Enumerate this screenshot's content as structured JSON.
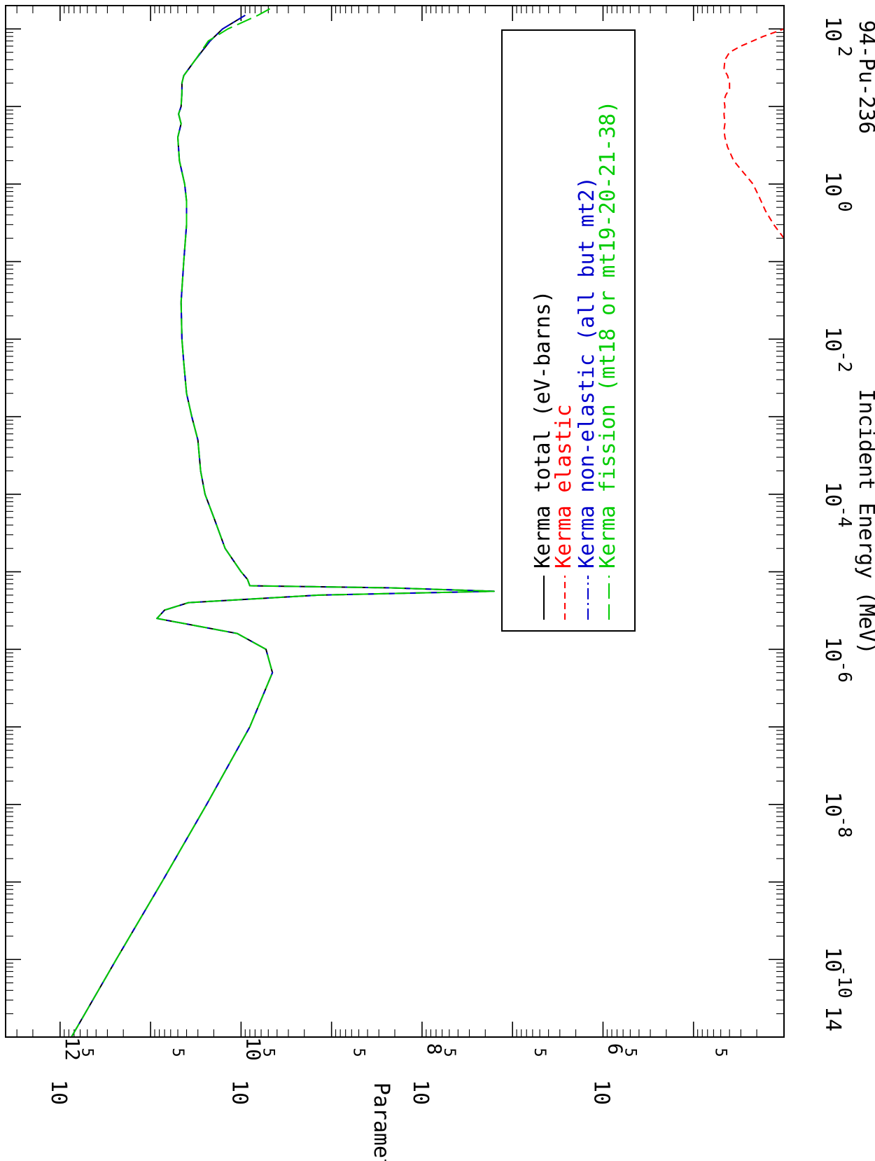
{
  "chart_data": {
    "type": "line",
    "orientation": "rotated-90-clockwise",
    "title": "94-Pu-236",
    "xlabel": "Incident Energy (MeV)",
    "ylabel": "Parameters",
    "x_scale": "log",
    "y_scale": "log",
    "xlim": [
      1e-11,
      200
    ],
    "ylim": [
      10000,
      4000000000000.0
    ],
    "x_ticks": [
      {
        "label": "10",
        "exp": "-10",
        "value": 1e-10
      },
      {
        "label": "10",
        "exp": "-8",
        "value": 1e-08
      },
      {
        "label": "10",
        "exp": "-6",
        "value": 1e-06
      },
      {
        "label": "10",
        "exp": "-4",
        "value": 0.0001
      },
      {
        "label": "10",
        "exp": "-2",
        "value": 0.01
      },
      {
        "label": "10",
        "exp": "0",
        "value": 1
      },
      {
        "label": "10",
        "exp": "2",
        "value": 100
      }
    ],
    "x_extra_label": "14",
    "y_ticks": [
      {
        "label": "10",
        "exp": "6",
        "value": 1000000.0
      },
      {
        "label": "10",
        "exp": "8",
        "value": 100000000.0
      },
      {
        "label": "10",
        "exp": "10",
        "value": 10000000000.0
      },
      {
        "label": "10",
        "exp": "12",
        "value": 1000000000000.0
      }
    ],
    "y_minor_labels": [
      {
        "label": "5",
        "value": 50000.0
      },
      {
        "label": "5",
        "value": 500000.0
      },
      {
        "label": "5",
        "value": 5000000.0
      },
      {
        "label": "5",
        "value": 50000000.0
      },
      {
        "label": "5",
        "value": 500000000.0
      },
      {
        "label": "5",
        "value": 5000000000.0
      },
      {
        "label": "5",
        "value": 50000000000.0
      },
      {
        "label": "5",
        "value": 500000000000.0
      }
    ],
    "legend": {
      "placement": "top-right",
      "entries": [
        {
          "text": "Kerma total  (eV-barns)",
          "color": "#000000",
          "dash": "solid"
        },
        {
          "text": "Kerma elastic",
          "color": "#ff0000",
          "dash": "dashed"
        },
        {
          "text": "Kerma non-elastic (all but mt2)",
          "color": "#0000cc",
          "dash": "dash-dot"
        },
        {
          "text": "Kerma fission (mt18 or mt19-20-21-38)",
          "color": "#00cc00",
          "dash": "long-dash"
        }
      ]
    },
    "series": [
      {
        "name": "Kerma total  (eV-barns)",
        "color": "#000000",
        "x": [
          1e-11,
          1e-10,
          1e-09,
          1e-08,
          1e-07,
          5e-07,
          1e-06,
          1.6e-06,
          2.5e-06,
          3.2e-06,
          4e-06,
          5e-06,
          5.6e-06,
          6.2e-06,
          6.6e-06,
          8e-06,
          1e-05,
          2e-05,
          5e-05,
          0.0001,
          0.0002,
          0.0005,
          0.001,
          0.002,
          0.005,
          0.01,
          0.03,
          0.1,
          0.3,
          0.6,
          1,
          2,
          4,
          6,
          8,
          10,
          15,
          20,
          25,
          40,
          70,
          100,
          150
        ],
        "y": [
          750000000000.0,
          240000000000.0,
          75000000000.0,
          24000000000.0,
          8000000000.0,
          4500000000.0,
          5300000000.0,
          11000000000.0,
          85000000000.0,
          70000000000.0,
          38000000000.0,
          1400000000.0,
          16000000.0,
          220000000.0,
          8000000000.0,
          8500000000.0,
          10000000000.0,
          15000000000.0,
          20000000000.0,
          25000000000.0,
          28000000000.0,
          30000000000.0,
          35000000000.0,
          40000000000.0,
          43000000000.0,
          45000000000.0,
          46000000000.0,
          43000000000.0,
          40000000000.0,
          40000000000.0,
          42000000000.0,
          48000000000.0,
          50000000000.0,
          46000000000.0,
          49000000000.0,
          46000000000.0,
          45000000000.0,
          45000000000.0,
          43000000000.0,
          32000000000.0,
          22000000000.0,
          16000000000.0,
          9000000000.0
        ]
      },
      {
        "name": "Kerma elastic",
        "color": "#ff0000",
        "x": [
          0.2,
          0.3,
          0.45,
          0.7,
          1,
          1.4,
          2,
          3,
          4,
          5,
          6,
          8,
          10,
          12,
          14,
          17,
          20,
          25,
          30,
          40,
          50,
          60,
          80,
          100
        ],
        "y": [
          10000.0,
          13000.0,
          16000.0,
          19000.0,
          22000.0,
          28000.0,
          36000.0,
          42000.0,
          45000.0,
          46000.0,
          45000.0,
          46000.0,
          45000.0,
          46000.0,
          44000.0,
          40000.0,
          40000.0,
          42000.0,
          46000.0,
          45000.0,
          40000.0,
          30000.0,
          17000.0,
          10000.0
        ]
      },
      {
        "name": "Kerma non-elastic (all but mt2)",
        "color": "#0000cc",
        "x": [
          1e-11,
          1e-10,
          1e-09,
          1e-08,
          1e-07,
          5e-07,
          1e-06,
          1.6e-06,
          2.5e-06,
          3.2e-06,
          4e-06,
          5e-06,
          5.6e-06,
          6.2e-06,
          6.6e-06,
          8e-06,
          1e-05,
          2e-05,
          5e-05,
          0.0001,
          0.0002,
          0.0005,
          0.001,
          0.002,
          0.005,
          0.01,
          0.03,
          0.1,
          0.3,
          0.6,
          1,
          2,
          4,
          6,
          8,
          10,
          15,
          20,
          25,
          40,
          70,
          100,
          150
        ],
        "y": [
          750000000000.0,
          240000000000.0,
          75000000000.0,
          24000000000.0,
          8000000000.0,
          4500000000.0,
          5300000000.0,
          11000000000.0,
          85000000000.0,
          70000000000.0,
          38000000000.0,
          1400000000.0,
          16000000.0,
          220000000.0,
          8000000000.0,
          8500000000.0,
          10000000000.0,
          15000000000.0,
          20000000000.0,
          25000000000.0,
          28000000000.0,
          30000000000.0,
          35000000000.0,
          40000000000.0,
          43000000000.0,
          45000000000.0,
          46000000000.0,
          43000000000.0,
          40000000000.0,
          40000000000.0,
          42000000000.0,
          48000000000.0,
          50000000000.0,
          46000000000.0,
          49000000000.0,
          46000000000.0,
          45000000000.0,
          45000000000.0,
          43000000000.0,
          32000000000.0,
          22000000000.0,
          16000000000.0,
          9000000000.0
        ]
      },
      {
        "name": "Kerma fission (mt18 or mt19-20-21-38)",
        "color": "#00cc00",
        "x": [
          1e-11,
          1e-10,
          1e-09,
          1e-08,
          1e-07,
          5e-07,
          1e-06,
          1.6e-06,
          2.5e-06,
          3.2e-06,
          4e-06,
          5e-06,
          5.6e-06,
          6.2e-06,
          6.6e-06,
          8e-06,
          1e-05,
          2e-05,
          5e-05,
          0.0001,
          0.0002,
          0.0005,
          0.001,
          0.002,
          0.005,
          0.01,
          0.03,
          0.1,
          0.3,
          0.6,
          1,
          2,
          4,
          6,
          8,
          10,
          15,
          20,
          25,
          40,
          70,
          100,
          150,
          190
        ],
        "y": [
          750000000000.0,
          240000000000.0,
          75000000000.0,
          24000000000.0,
          8000000000.0,
          4500000000.0,
          5300000000.0,
          11000000000.0,
          85000000000.0,
          70000000000.0,
          38000000000.0,
          1400000000.0,
          16000000.0,
          220000000.0,
          8000000000.0,
          8500000000.0,
          10000000000.0,
          15000000000.0,
          20000000000.0,
          25000000000.0,
          28000000000.0,
          30000000000.0,
          35000000000.0,
          40000000000.0,
          43000000000.0,
          45000000000.0,
          46000000000.0,
          43000000000.0,
          40000000000.0,
          40000000000.0,
          42000000000.0,
          48000000000.0,
          50000000000.0,
          46000000000.0,
          49000000000.0,
          46000000000.0,
          45000000000.0,
          45000000000.0,
          43000000000.0,
          32000000000.0,
          23000000000.0,
          14000000000.0,
          6500000000.0,
          4500000000.0
        ]
      }
    ]
  }
}
